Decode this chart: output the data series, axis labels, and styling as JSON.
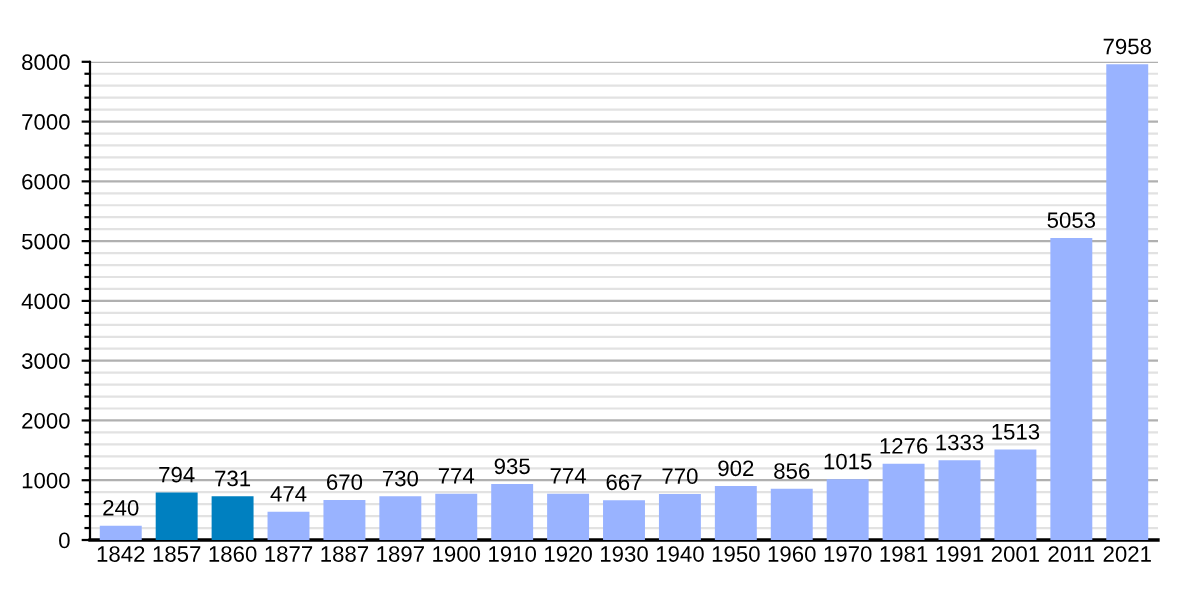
{
  "chart_data": {
    "type": "bar",
    "categories": [
      "1842",
      "1857",
      "1860",
      "1877",
      "1887",
      "1897",
      "1900",
      "1910",
      "1920",
      "1930",
      "1940",
      "1950",
      "1960",
      "1970",
      "1981",
      "1991",
      "2001",
      "2011",
      "2021"
    ],
    "values": [
      240,
      794,
      731,
      474,
      670,
      730,
      774,
      935,
      774,
      667,
      770,
      902,
      856,
      1015,
      1276,
      1333,
      1513,
      5053,
      7958
    ],
    "colors": [
      "#99b3ff",
      "#0080c0",
      "#0080c0",
      "#99b3ff",
      "#99b3ff",
      "#99b3ff",
      "#99b3ff",
      "#99b3ff",
      "#99b3ff",
      "#99b3ff",
      "#99b3ff",
      "#99b3ff",
      "#99b3ff",
      "#99b3ff",
      "#99b3ff",
      "#99b3ff",
      "#99b3ff",
      "#99b3ff",
      "#99b3ff"
    ],
    "ylim": [
      0,
      8000
    ],
    "yticks": [
      0,
      {
        "value": 200,
        "label": null
      },
      {
        "value": 400,
        "label": null
      },
      {
        "value": 600,
        "label": null
      },
      {
        "value": 800,
        "label": null
      },
      1000,
      {
        "value": 1200,
        "label": null
      },
      {
        "value": 1400,
        "label": null
      },
      {
        "value": 1600,
        "label": null
      },
      {
        "value": 1800,
        "label": null
      },
      2000,
      {
        "value": 2200,
        "label": null
      },
      {
        "value": 2400,
        "label": null
      },
      {
        "value": 2600,
        "label": null
      },
      {
        "value": 2800,
        "label": null
      },
      3000,
      {
        "value": 3200,
        "label": null
      },
      {
        "value": 3400,
        "label": null
      },
      {
        "value": 3600,
        "label": null
      },
      {
        "value": 3800,
        "label": null
      },
      4000,
      {
        "value": 4200,
        "label": null
      },
      {
        "value": 4400,
        "label": null
      },
      {
        "value": 4600,
        "label": null
      },
      {
        "value": 4800,
        "label": null
      },
      5000,
      {
        "value": 5200,
        "label": null
      },
      {
        "value": 5400,
        "label": null
      },
      {
        "value": 5600,
        "label": null
      },
      {
        "value": 5800,
        "label": null
      },
      6000,
      {
        "value": 6200,
        "label": null
      },
      {
        "value": 6400,
        "label": null
      },
      {
        "value": 6600,
        "label": null
      },
      {
        "value": 6800,
        "label": null
      },
      7000,
      {
        "value": 7200,
        "label": null
      },
      {
        "value": 7400,
        "label": null
      },
      {
        "value": 7600,
        "label": null
      },
      {
        "value": 7800,
        "label": null
      },
      8000
    ],
    "grid": "y",
    "data_labels": true
  }
}
